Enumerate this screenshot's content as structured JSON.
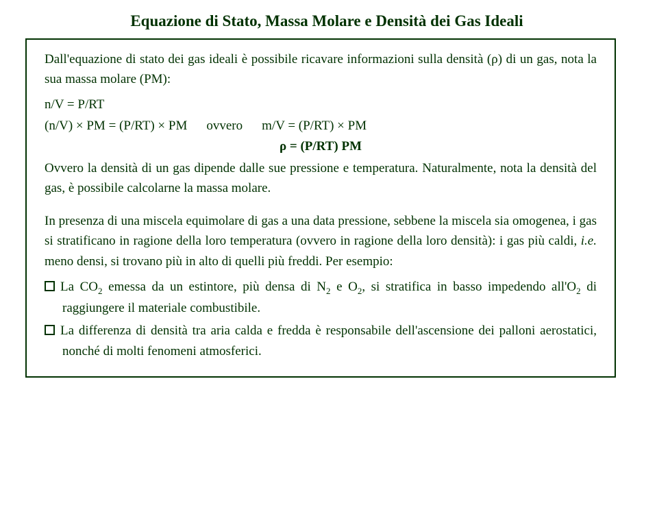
{
  "title": "Equazione di Stato, Massa Molare e Densità dei Gas Ideali",
  "intro": "Dall'equazione di stato dei gas ideali è possibile ricavare informazioni sulla densità (ρ) di un gas, nota la sua massa molare (PM):",
  "eq1": "n/V = P/RT",
  "eq2a": "(n/V) × PM = (P/RT) × PM",
  "eq2_ovvero": "ovvero",
  "eq2b": "m/V = (P/RT) × PM",
  "eq3": "ρ = (P/RT) PM",
  "ovvero_line": "Ovvero la densità di un gas dipende dalle sue pressione e temperatura. Naturalmente, nota la densità del gas, è possibile calcolarne la massa molare.",
  "miscela_p1": "In presenza di una miscela equimolare di gas a una data pressione, sebbene la miscela sia omogenea, i gas si stratificano in ragione della loro temperatura (ovvero in ragione della loro densità): i gas più caldi, ",
  "ie": "i.e.",
  "miscela_p2": " meno densi, si trovano più in alto di quelli più freddi. Per esempio:",
  "bullet1_a": "La CO",
  "bullet1_b": " emessa da un estintore, più densa di N",
  "bullet1_c": " e O",
  "bullet1_d": ", si stratifica in basso impedendo all'O",
  "bullet1_e": " di raggiungere il materiale combustibile.",
  "bullet2": "La differenza di densità tra aria calda e fredda è responsabile dell'ascensione dei palloni aerostatici, nonché di molti fenomeni atmosferici.",
  "colors": {
    "text": "#003100",
    "border": "#003100",
    "background": "#ffffff"
  }
}
